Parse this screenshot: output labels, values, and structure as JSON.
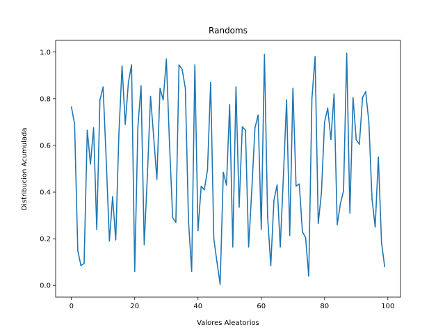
{
  "chart_data": {
    "type": "line",
    "title": "Randoms",
    "xlabel": "Valores Aleatorios",
    "ylabel": "Distribucion Acumulada",
    "xlim": [
      -5,
      104
    ],
    "ylim": [
      -0.05,
      1.05
    ],
    "xticks": [
      0,
      20,
      40,
      60,
      80,
      100
    ],
    "xtick_labels": [
      "0",
      "20",
      "40",
      "60",
      "80",
      "100"
    ],
    "yticks": [
      0.0,
      0.2,
      0.4,
      0.6,
      0.8,
      1.0
    ],
    "ytick_labels": [
      "0.0",
      "0.2",
      "0.4",
      "0.6",
      "0.8",
      "1.0"
    ],
    "grid": false,
    "series": [
      {
        "color": "#1f77b4",
        "x": [
          0,
          1,
          2,
          3,
          4,
          5,
          6,
          7,
          8,
          9,
          10,
          11,
          12,
          13,
          14,
          15,
          16,
          17,
          18,
          19,
          20,
          21,
          22,
          23,
          24,
          25,
          26,
          27,
          28,
          29,
          30,
          31,
          32,
          33,
          34,
          35,
          36,
          37,
          38,
          39,
          40,
          41,
          42,
          43,
          44,
          45,
          46,
          47,
          48,
          49,
          50,
          51,
          52,
          53,
          54,
          55,
          56,
          57,
          58,
          59,
          60,
          61,
          62,
          63,
          64,
          65,
          66,
          67,
          68,
          69,
          70,
          71,
          72,
          73,
          74,
          75,
          76,
          77,
          78,
          79,
          80,
          81,
          82,
          83,
          84,
          85,
          86,
          87,
          88,
          89,
          90,
          91,
          92,
          93,
          94,
          95,
          96,
          97,
          98,
          99
        ],
        "y": [
          0.765,
          0.69,
          0.15,
          0.085,
          0.095,
          0.665,
          0.52,
          0.675,
          0.24,
          0.795,
          0.85,
          0.535,
          0.19,
          0.38,
          0.195,
          0.65,
          0.94,
          0.69,
          0.87,
          0.945,
          0.06,
          0.68,
          0.855,
          0.175,
          0.47,
          0.81,
          0.635,
          0.455,
          0.845,
          0.795,
          0.97,
          0.605,
          0.29,
          0.27,
          0.945,
          0.925,
          0.845,
          0.275,
          0.06,
          0.945,
          0.235,
          0.425,
          0.41,
          0.495,
          0.87,
          0.2,
          0.1,
          0.005,
          0.485,
          0.43,
          0.775,
          0.165,
          0.85,
          0.335,
          0.68,
          0.665,
          0.165,
          0.41,
          0.675,
          0.73,
          0.24,
          0.99,
          0.295,
          0.085,
          0.365,
          0.43,
          0.165,
          0.47,
          0.795,
          0.215,
          0.845,
          0.425,
          0.435,
          0.23,
          0.205,
          0.04,
          0.8,
          0.98,
          0.265,
          0.395,
          0.7,
          0.76,
          0.625,
          0.82,
          0.26,
          0.35,
          0.405,
          0.995,
          0.31,
          0.805,
          0.625,
          0.605,
          0.805,
          0.83,
          0.7,
          0.37,
          0.25,
          0.55,
          0.185,
          0.08
        ]
      }
    ]
  }
}
